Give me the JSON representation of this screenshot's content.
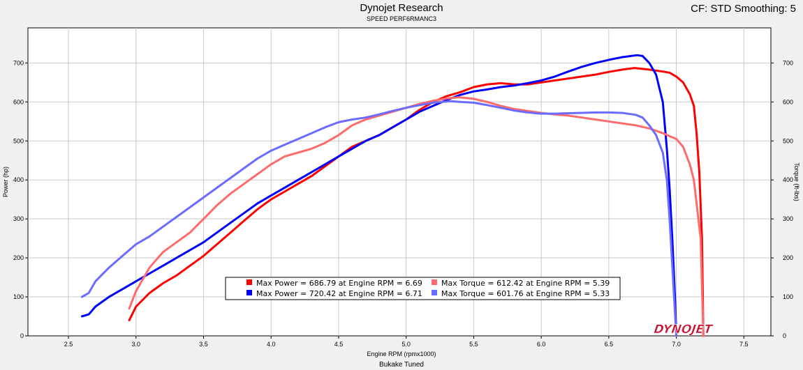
{
  "header": {
    "title": "Dynojet Research",
    "subtitle": "SPEED PERF6RMANC3",
    "cf_text": "CF: STD Smoothing: 5"
  },
  "footer": {
    "text": "Bukake Tuned"
  },
  "logo": {
    "text_a": "DYNO",
    "text_b": "JET",
    "color": "#c8102e"
  },
  "chart_data": {
    "type": "line",
    "title": "Dynojet Research",
    "subtitle": "SPEED PERF6RMANC3",
    "xlabel": "Engine RPM (rpmx1000)",
    "ylabel_left": "Power (hp)",
    "ylabel_right": "Torque (ft-lbs)",
    "xlim": [
      2.2,
      7.7
    ],
    "ylim": [
      0,
      790
    ],
    "x_ticks": [
      2.5,
      3.0,
      3.5,
      4.0,
      4.5,
      5.0,
      5.5,
      6.0,
      6.5,
      7.0,
      7.5
    ],
    "y_ticks": [
      0,
      100,
      200,
      300,
      400,
      500,
      600,
      700
    ],
    "grid": true,
    "legend": {
      "placement": "bottom-center",
      "entries": [
        "Max Power = 686.79 at Engine RPM = 6.69",
        "Max Power = 720.42 at Engine RPM = 6.71",
        "Max Torque = 612.42 at Engine RPM = 5.39",
        "Max Torque = 601.76 at Engine RPM = 5.33"
      ]
    },
    "series": [
      {
        "color": "#ff0000",
        "axis": "left",
        "points": [
          [
            2.95,
            40
          ],
          [
            3.0,
            75
          ],
          [
            3.1,
            110
          ],
          [
            3.2,
            135
          ],
          [
            3.3,
            155
          ],
          [
            3.4,
            180
          ],
          [
            3.5,
            205
          ],
          [
            3.6,
            235
          ],
          [
            3.7,
            265
          ],
          [
            3.8,
            295
          ],
          [
            3.9,
            325
          ],
          [
            4.0,
            350
          ],
          [
            4.1,
            370
          ],
          [
            4.2,
            390
          ],
          [
            4.3,
            410
          ],
          [
            4.4,
            435
          ],
          [
            4.5,
            460
          ],
          [
            4.6,
            485
          ],
          [
            4.7,
            500
          ],
          [
            4.8,
            515
          ],
          [
            4.9,
            535
          ],
          [
            5.0,
            555
          ],
          [
            5.1,
            580
          ],
          [
            5.2,
            600
          ],
          [
            5.3,
            615
          ],
          [
            5.4,
            625
          ],
          [
            5.5,
            638
          ],
          [
            5.6,
            645
          ],
          [
            5.7,
            648
          ],
          [
            5.8,
            645
          ],
          [
            5.9,
            645
          ],
          [
            6.0,
            650
          ],
          [
            6.1,
            655
          ],
          [
            6.2,
            660
          ],
          [
            6.3,
            665
          ],
          [
            6.4,
            670
          ],
          [
            6.5,
            677
          ],
          [
            6.6,
            683
          ],
          [
            6.69,
            687
          ],
          [
            6.8,
            683
          ],
          [
            6.9,
            678
          ],
          [
            6.95,
            675
          ],
          [
            7.0,
            665
          ],
          [
            7.05,
            650
          ],
          [
            7.1,
            620
          ],
          [
            7.13,
            590
          ],
          [
            7.15,
            520
          ],
          [
            7.17,
            420
          ],
          [
            7.19,
            250
          ],
          [
            7.2,
            0
          ]
        ]
      },
      {
        "color": "#0000ff",
        "axis": "left",
        "points": [
          [
            2.6,
            50
          ],
          [
            2.65,
            55
          ],
          [
            2.7,
            75
          ],
          [
            2.8,
            100
          ],
          [
            2.9,
            120
          ],
          [
            3.0,
            140
          ],
          [
            3.1,
            160
          ],
          [
            3.2,
            180
          ],
          [
            3.3,
            200
          ],
          [
            3.4,
            220
          ],
          [
            3.5,
            240
          ],
          [
            3.6,
            265
          ],
          [
            3.7,
            290
          ],
          [
            3.8,
            315
          ],
          [
            3.9,
            340
          ],
          [
            4.0,
            360
          ],
          [
            4.1,
            380
          ],
          [
            4.2,
            400
          ],
          [
            4.3,
            420
          ],
          [
            4.4,
            440
          ],
          [
            4.5,
            460
          ],
          [
            4.6,
            480
          ],
          [
            4.7,
            500
          ],
          [
            4.8,
            515
          ],
          [
            4.9,
            535
          ],
          [
            5.0,
            555
          ],
          [
            5.1,
            575
          ],
          [
            5.2,
            590
          ],
          [
            5.3,
            605
          ],
          [
            5.4,
            618
          ],
          [
            5.5,
            627
          ],
          [
            5.6,
            632
          ],
          [
            5.7,
            638
          ],
          [
            5.8,
            642
          ],
          [
            5.9,
            648
          ],
          [
            6.0,
            655
          ],
          [
            6.1,
            665
          ],
          [
            6.2,
            678
          ],
          [
            6.3,
            690
          ],
          [
            6.4,
            700
          ],
          [
            6.5,
            708
          ],
          [
            6.6,
            715
          ],
          [
            6.71,
            720
          ],
          [
            6.75,
            718
          ],
          [
            6.8,
            700
          ],
          [
            6.85,
            670
          ],
          [
            6.9,
            600
          ],
          [
            6.93,
            480
          ],
          [
            6.95,
            380
          ],
          [
            6.97,
            250
          ],
          [
            6.99,
            100
          ],
          [
            7.0,
            0
          ]
        ]
      },
      {
        "color": "#ff6b6b",
        "axis": "right",
        "points": [
          [
            2.95,
            70
          ],
          [
            3.0,
            115
          ],
          [
            3.1,
            175
          ],
          [
            3.2,
            215
          ],
          [
            3.3,
            240
          ],
          [
            3.4,
            265
          ],
          [
            3.5,
            300
          ],
          [
            3.6,
            335
          ],
          [
            3.7,
            365
          ],
          [
            3.8,
            390
          ],
          [
            3.9,
            415
          ],
          [
            4.0,
            440
          ],
          [
            4.1,
            460
          ],
          [
            4.2,
            470
          ],
          [
            4.3,
            480
          ],
          [
            4.4,
            495
          ],
          [
            4.5,
            515
          ],
          [
            4.6,
            540
          ],
          [
            4.7,
            555
          ],
          [
            4.8,
            565
          ],
          [
            4.9,
            575
          ],
          [
            5.0,
            585
          ],
          [
            5.1,
            595
          ],
          [
            5.2,
            603
          ],
          [
            5.3,
            609
          ],
          [
            5.39,
            612
          ],
          [
            5.5,
            608
          ],
          [
            5.6,
            600
          ],
          [
            5.7,
            590
          ],
          [
            5.8,
            582
          ],
          [
            5.9,
            577
          ],
          [
            6.0,
            572
          ],
          [
            6.1,
            568
          ],
          [
            6.2,
            565
          ],
          [
            6.3,
            560
          ],
          [
            6.4,
            555
          ],
          [
            6.5,
            550
          ],
          [
            6.6,
            545
          ],
          [
            6.7,
            540
          ],
          [
            6.8,
            532
          ],
          [
            6.9,
            520
          ],
          [
            7.0,
            505
          ],
          [
            7.05,
            485
          ],
          [
            7.1,
            440
          ],
          [
            7.13,
            400
          ],
          [
            7.15,
            340
          ],
          [
            7.18,
            250
          ],
          [
            7.2,
            0
          ]
        ]
      },
      {
        "color": "#6b6bff",
        "axis": "right",
        "points": [
          [
            2.6,
            100
          ],
          [
            2.65,
            110
          ],
          [
            2.7,
            140
          ],
          [
            2.8,
            175
          ],
          [
            2.9,
            205
          ],
          [
            3.0,
            235
          ],
          [
            3.1,
            255
          ],
          [
            3.2,
            280
          ],
          [
            3.3,
            305
          ],
          [
            3.4,
            330
          ],
          [
            3.5,
            355
          ],
          [
            3.6,
            380
          ],
          [
            3.7,
            405
          ],
          [
            3.8,
            430
          ],
          [
            3.9,
            455
          ],
          [
            4.0,
            475
          ],
          [
            4.1,
            490
          ],
          [
            4.2,
            505
          ],
          [
            4.3,
            520
          ],
          [
            4.4,
            535
          ],
          [
            4.5,
            548
          ],
          [
            4.6,
            555
          ],
          [
            4.7,
            560
          ],
          [
            4.8,
            568
          ],
          [
            4.9,
            577
          ],
          [
            5.0,
            585
          ],
          [
            5.1,
            592
          ],
          [
            5.2,
            598
          ],
          [
            5.33,
            602
          ],
          [
            5.4,
            600
          ],
          [
            5.5,
            598
          ],
          [
            5.6,
            592
          ],
          [
            5.7,
            585
          ],
          [
            5.8,
            578
          ],
          [
            5.9,
            573
          ],
          [
            6.0,
            570
          ],
          [
            6.1,
            570
          ],
          [
            6.2,
            571
          ],
          [
            6.3,
            572
          ],
          [
            6.4,
            573
          ],
          [
            6.5,
            573
          ],
          [
            6.6,
            572
          ],
          [
            6.7,
            567
          ],
          [
            6.75,
            560
          ],
          [
            6.8,
            540
          ],
          [
            6.85,
            515
          ],
          [
            6.9,
            470
          ],
          [
            6.93,
            400
          ],
          [
            6.95,
            300
          ],
          [
            6.97,
            180
          ],
          [
            6.99,
            60
          ],
          [
            7.0,
            0
          ]
        ]
      }
    ]
  }
}
